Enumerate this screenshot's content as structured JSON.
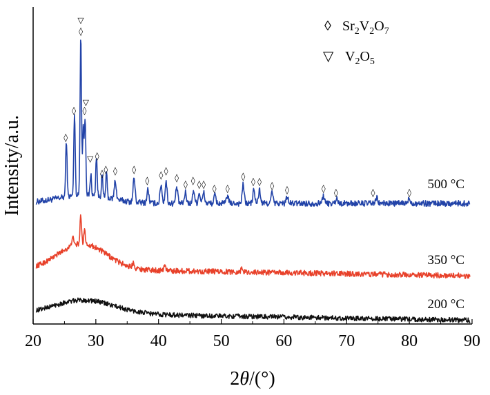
{
  "chart_data": {
    "type": "line",
    "xlabel_prefix": "2",
    "xlabel_theta": "θ",
    "xlabel_suffix": "/(°)",
    "ylabel": "Intensity/a.u.",
    "xlim": [
      20,
      90
    ],
    "xticks": [
      "20",
      "30",
      "40",
      "50",
      "60",
      "70",
      "80",
      "90"
    ],
    "grid": false,
    "legend": {
      "placement": "top-right",
      "items": [
        {
          "symbol": "◊",
          "base": "Sr",
          "sub1": "2",
          "mid": "V",
          "sub2": "2",
          "end": "O",
          "sub3": "7"
        },
        {
          "symbol": "▽",
          "base": "V",
          "sub1": "2",
          "mid": "O",
          "sub2": "5",
          "end": "",
          "sub3": ""
        }
      ]
    },
    "series": [
      {
        "name": "500 °C",
        "color": "#2243a8",
        "baseline": 0.0,
        "noise": 0.22,
        "hump": {
          "center": 28,
          "width": 6,
          "height": 0.6
        },
        "peaks": [
          [
            25.3,
            4.2
          ],
          [
            26.6,
            6.2
          ],
          [
            27.6,
            12.0
          ],
          [
            28.0,
            5.0
          ],
          [
            28.3,
            5.6
          ],
          [
            29.2,
            1.6
          ],
          [
            30.1,
            3.0
          ],
          [
            31.0,
            1.6
          ],
          [
            31.7,
            1.8
          ],
          [
            33.1,
            1.4
          ],
          [
            36.1,
            1.8
          ],
          [
            38.3,
            1.0
          ],
          [
            40.4,
            1.4
          ],
          [
            41.2,
            1.6
          ],
          [
            42.9,
            1.2
          ],
          [
            44.3,
            0.8
          ],
          [
            45.6,
            1.0
          ],
          [
            46.5,
            0.8
          ],
          [
            47.2,
            0.8
          ],
          [
            49.0,
            0.6
          ],
          [
            51.0,
            0.6
          ],
          [
            53.5,
            1.4
          ],
          [
            55.2,
            1.0
          ],
          [
            56.1,
            1.0
          ],
          [
            58.1,
            0.8
          ],
          [
            60.5,
            0.5
          ],
          [
            66.3,
            0.6
          ],
          [
            68.4,
            0.4
          ],
          [
            74.8,
            0.4
          ],
          [
            80.0,
            0.4
          ]
        ]
      },
      {
        "name": "350 °C",
        "color": "#e8412a",
        "baseline": -5.0,
        "noise": 0.2,
        "hump": {
          "center": 27.8,
          "width": 5.5,
          "height": 2.0
        },
        "peaks": [
          [
            26.3,
            0.8
          ],
          [
            27.6,
            2.2
          ],
          [
            28.2,
            1.2
          ],
          [
            36.0,
            0.4
          ],
          [
            41.0,
            0.4
          ],
          [
            53.3,
            0.3
          ]
        ]
      },
      {
        "name": "200 °C",
        "color": "#111111",
        "baseline": -8.3,
        "noise": 0.18,
        "hump": {
          "center": 28,
          "width": 7,
          "height": 1.1
        },
        "peaks": []
      }
    ],
    "markers": [
      {
        "x": 25.2,
        "y": 4.7,
        "symbol": "◊"
      },
      {
        "x": 26.5,
        "y": 6.7,
        "symbol": "◊"
      },
      {
        "x": 27.6,
        "y": 12.6,
        "symbol": "◊"
      },
      {
        "x": 27.6,
        "y": 13.4,
        "symbol": "▽"
      },
      {
        "x": 28.2,
        "y": 6.7,
        "symbol": "◊"
      },
      {
        "x": 28.4,
        "y": 7.3,
        "symbol": "▽"
      },
      {
        "x": 29.1,
        "y": 3.1,
        "symbol": "▽"
      },
      {
        "x": 30.2,
        "y": 3.3,
        "symbol": "◊"
      },
      {
        "x": 31.0,
        "y": 2.0,
        "symbol": "◊"
      },
      {
        "x": 31.6,
        "y": 2.3,
        "symbol": "◊"
      },
      {
        "x": 33.1,
        "y": 2.2,
        "symbol": "◊"
      },
      {
        "x": 36.1,
        "y": 2.3,
        "symbol": "◊"
      },
      {
        "x": 38.2,
        "y": 1.5,
        "symbol": "◊"
      },
      {
        "x": 40.4,
        "y": 1.9,
        "symbol": "◊"
      },
      {
        "x": 41.2,
        "y": 2.2,
        "symbol": "◊"
      },
      {
        "x": 42.9,
        "y": 1.7,
        "symbol": "◊"
      },
      {
        "x": 44.3,
        "y": 1.2,
        "symbol": "◊"
      },
      {
        "x": 45.5,
        "y": 1.5,
        "symbol": "◊"
      },
      {
        "x": 46.5,
        "y": 1.2,
        "symbol": "◊"
      },
      {
        "x": 47.2,
        "y": 1.2,
        "symbol": "◊"
      },
      {
        "x": 48.9,
        "y": 0.9,
        "symbol": "◊"
      },
      {
        "x": 51.0,
        "y": 0.9,
        "symbol": "◊"
      },
      {
        "x": 53.5,
        "y": 1.8,
        "symbol": "◊"
      },
      {
        "x": 55.1,
        "y": 1.4,
        "symbol": "◊"
      },
      {
        "x": 56.1,
        "y": 1.4,
        "symbol": "◊"
      },
      {
        "x": 58.1,
        "y": 1.1,
        "symbol": "◊"
      },
      {
        "x": 60.5,
        "y": 0.8,
        "symbol": "◊"
      },
      {
        "x": 66.3,
        "y": 0.9,
        "symbol": "◊"
      },
      {
        "x": 68.3,
        "y": 0.6,
        "symbol": "◊"
      },
      {
        "x": 74.2,
        "y": 0.6,
        "symbol": "◊"
      },
      {
        "x": 80.0,
        "y": 0.6,
        "symbol": "◊"
      }
    ]
  }
}
